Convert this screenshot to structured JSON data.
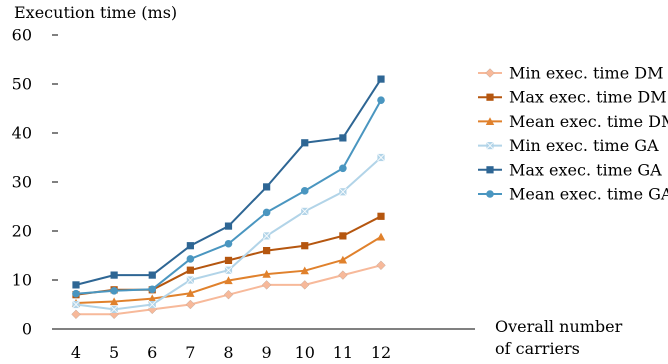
{
  "chart_data": {
    "type": "line",
    "title": "",
    "ylabel": "Execution time (ms)",
    "xlabel_lines": [
      "Overall number",
      "of carriers"
    ],
    "x": [
      4,
      5,
      6,
      7,
      8,
      9,
      10,
      11,
      12
    ],
    "ylim": [
      0,
      60
    ],
    "yticks": [
      0,
      10,
      20,
      30,
      40,
      50,
      60
    ],
    "grid": false,
    "legend_position": "right",
    "series": [
      {
        "name": "Min exec. time DM",
        "color": "#f7b99a",
        "marker": "diamond",
        "values": [
          3,
          3,
          4,
          5,
          7,
          9,
          9,
          11,
          13
        ]
      },
      {
        "name": "Max exec. time DM",
        "color": "#b5560f",
        "marker": "square",
        "values": [
          7,
          8,
          8,
          12,
          14,
          16,
          17,
          19,
          23
        ]
      },
      {
        "name": "Mean exec. time DM",
        "color": "#e0812c",
        "marker": "triangle",
        "values": [
          5.3,
          5.6,
          6.2,
          7.3,
          9.9,
          11.2,
          11.9,
          14.1,
          18.8
        ]
      },
      {
        "name": "Min exec. time GA",
        "color": "#b2d4e8",
        "marker": "x-square",
        "values": [
          5,
          4,
          5,
          10,
          12,
          19,
          24,
          28,
          35
        ]
      },
      {
        "name": "Max exec. time GA",
        "color": "#2e6694",
        "marker": "square",
        "values": [
          9,
          11,
          11,
          17,
          21,
          29,
          38,
          39,
          51
        ]
      },
      {
        "name": "Mean exec. time GA",
        "color": "#4a96c0",
        "marker": "circle",
        "values": [
          7.2,
          7.8,
          8.1,
          14.3,
          17.4,
          23.8,
          28.2,
          32.8,
          46.7
        ]
      }
    ]
  }
}
